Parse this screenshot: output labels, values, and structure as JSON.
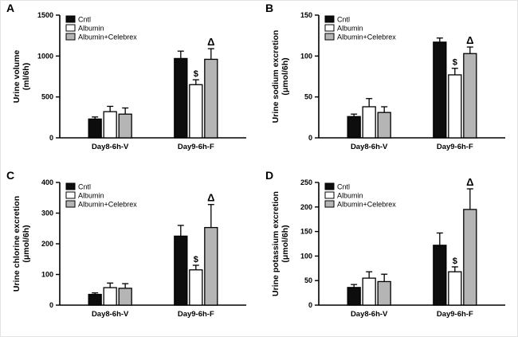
{
  "chart_data": [
    {
      "panel": "A",
      "type": "bar",
      "ylabel": "Urine volume (ml/6h)",
      "ylabel_lines": [
        "Urine volume",
        "(ml/6h)"
      ],
      "ylim": [
        0,
        1500
      ],
      "yticks": [
        0,
        500,
        1000,
        1500
      ],
      "categories": [
        "Day8-6h-V",
        "Day9-6h-F"
      ],
      "legend_position": "top-left-inside",
      "grid": false,
      "series": [
        {
          "name": "Cntl",
          "color": "#0d0d0d",
          "values": [
            230,
            970
          ],
          "errors": [
            25,
            90
          ],
          "annotations": [
            "",
            ""
          ]
        },
        {
          "name": "Albumin",
          "color": "#ffffff",
          "values": [
            320,
            650
          ],
          "errors": [
            65,
            60
          ],
          "annotations": [
            "",
            "$"
          ]
        },
        {
          "name": "Albumin+Celebrex",
          "color": "#b5b5b5",
          "values": [
            290,
            960
          ],
          "errors": [
            75,
            130
          ],
          "annotations": [
            "",
            "Δ"
          ]
        }
      ]
    },
    {
      "panel": "B",
      "type": "bar",
      "ylabel": "Urine sodium excretion (μmol/6h)",
      "ylabel_lines": [
        "Urine sodium excretion",
        "(μmol/6h)"
      ],
      "ylim": [
        0,
        150
      ],
      "yticks": [
        0,
        50,
        100,
        150
      ],
      "categories": [
        "Day8-6h-V",
        "Day9-6h-F"
      ],
      "legend_position": "top-left-inside",
      "grid": false,
      "series": [
        {
          "name": "Cntl",
          "color": "#0d0d0d",
          "values": [
            26,
            117
          ],
          "errors": [
            3,
            5
          ],
          "annotations": [
            "",
            ""
          ]
        },
        {
          "name": "Albumin",
          "color": "#ffffff",
          "values": [
            38,
            77
          ],
          "errors": [
            10,
            8
          ],
          "annotations": [
            "",
            "$"
          ]
        },
        {
          "name": "Albumin+Celebrex",
          "color": "#b5b5b5",
          "values": [
            31,
            103
          ],
          "errors": [
            7,
            8
          ],
          "annotations": [
            "",
            "Δ"
          ]
        }
      ]
    },
    {
      "panel": "C",
      "type": "bar",
      "ylabel": "Urine chlorine excretion (μmol/6h)",
      "ylabel_lines": [
        "Urine chlorine excretion",
        "(μmol/6h)"
      ],
      "ylim": [
        0,
        400
      ],
      "yticks": [
        0,
        100,
        200,
        300,
        400
      ],
      "categories": [
        "Day8-6h-V",
        "Day9-6h-F"
      ],
      "legend_position": "top-left-inside",
      "grid": false,
      "series": [
        {
          "name": "Cntl",
          "color": "#0d0d0d",
          "values": [
            35,
            225
          ],
          "errors": [
            5,
            35
          ],
          "annotations": [
            "",
            ""
          ]
        },
        {
          "name": "Albumin",
          "color": "#ffffff",
          "values": [
            57,
            115
          ],
          "errors": [
            15,
            15
          ],
          "annotations": [
            "",
            "$"
          ]
        },
        {
          "name": "Albumin+Celebrex",
          "color": "#b5b5b5",
          "values": [
            55,
            253
          ],
          "errors": [
            15,
            75
          ],
          "annotations": [
            "",
            "Δ"
          ]
        }
      ]
    },
    {
      "panel": "D",
      "type": "bar",
      "ylabel": "Urine potassium excretion (μmol/6h)",
      "ylabel_lines": [
        "Urine potassium excretion",
        "(μmol/6h)"
      ],
      "ylim": [
        0,
        250
      ],
      "yticks": [
        0,
        50,
        100,
        150,
        200,
        250
      ],
      "categories": [
        "Day8-6h-V",
        "Day9-6h-F"
      ],
      "legend_position": "top-left-inside",
      "grid": false,
      "series": [
        {
          "name": "Cntl",
          "color": "#0d0d0d",
          "values": [
            36,
            122
          ],
          "errors": [
            6,
            25
          ],
          "annotations": [
            "",
            ""
          ]
        },
        {
          "name": "Albumin",
          "color": "#ffffff",
          "values": [
            55,
            68
          ],
          "errors": [
            13,
            10
          ],
          "annotations": [
            "",
            "$"
          ]
        },
        {
          "name": "Albumin+Celebrex",
          "color": "#b5b5b5",
          "values": [
            48,
            195
          ],
          "errors": [
            15,
            42
          ],
          "annotations": [
            "",
            "Δ"
          ]
        }
      ]
    }
  ],
  "style": {
    "axis_color": "#000000",
    "bar_border_color": "#000000",
    "background": "#ffffff"
  }
}
